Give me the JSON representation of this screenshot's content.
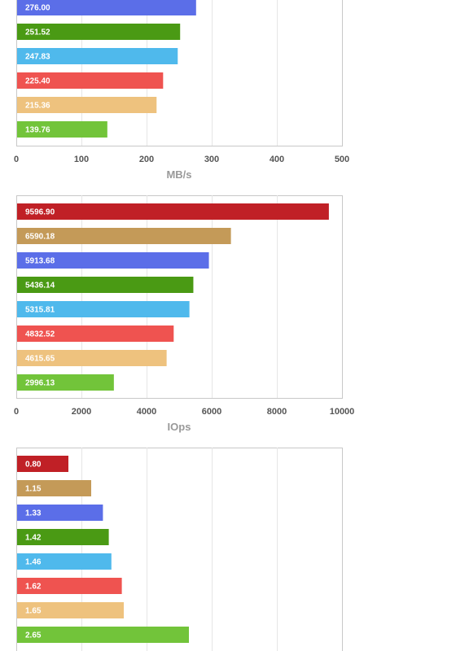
{
  "chart_data": [
    {
      "type": "bar",
      "orientation": "horizontal",
      "xlabel": "MB/s",
      "xlim": [
        0,
        500
      ],
      "ticks": [
        "0",
        "100",
        "200",
        "300",
        "400",
        "500"
      ],
      "grid": true,
      "values": [
        276.0,
        251.52,
        247.83,
        225.4,
        215.36,
        139.76
      ],
      "value_labels": [
        "276.00",
        "251.52",
        "247.83",
        "225.40",
        "215.36",
        "139.76"
      ],
      "colors": [
        "#5b6ee8",
        "#4a9a14",
        "#4fb9ec",
        "#ef5350",
        "#eec27e",
        "#72c43a"
      ]
    },
    {
      "type": "bar",
      "orientation": "horizontal",
      "xlabel": "IOps",
      "xlim": [
        0,
        10000
      ],
      "ticks": [
        "0",
        "2000",
        "4000",
        "6000",
        "8000",
        "10000"
      ],
      "grid": true,
      "values": [
        9596.9,
        6590.18,
        5913.68,
        5436.14,
        5315.81,
        4832.52,
        4615.65,
        2996.13
      ],
      "value_labels": [
        "9596.90",
        "6590.18",
        "5913.68",
        "5436.14",
        "5315.81",
        "4832.52",
        "4615.65",
        "2996.13"
      ],
      "colors": [
        "#c02026",
        "#c49a58",
        "#5b6ee8",
        "#4a9a14",
        "#4fb9ec",
        "#ef5350",
        "#eec27e",
        "#72c43a"
      ]
    },
    {
      "type": "bar",
      "orientation": "horizontal",
      "xlim": [
        0,
        5
      ],
      "grid": true,
      "values": [
        0.8,
        1.15,
        1.33,
        1.42,
        1.46,
        1.62,
        1.65,
        2.65
      ],
      "value_labels": [
        "0.80",
        "1.15",
        "1.33",
        "1.42",
        "1.46",
        "1.62",
        "1.65",
        "2.65"
      ],
      "colors": [
        "#c02026",
        "#c49a58",
        "#5b6ee8",
        "#4a9a14",
        "#4fb9ec",
        "#ef5350",
        "#eec27e",
        "#72c43a"
      ]
    }
  ]
}
